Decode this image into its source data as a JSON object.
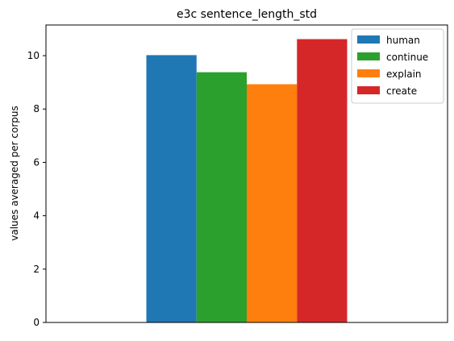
{
  "chart_data": {
    "type": "bar",
    "title": "e3c sentence_length_std",
    "xlabel": "",
    "ylabel": "values averaged per corpus",
    "categories": [
      ""
    ],
    "ylim": [
      0,
      11.15
    ],
    "yticks": [
      0,
      2,
      4,
      6,
      8,
      10
    ],
    "grid": false,
    "legend_position": "top-right",
    "series": [
      {
        "name": "human",
        "values": [
          10.02
        ],
        "color": "#1f77b4"
      },
      {
        "name": "continue",
        "values": [
          9.38
        ],
        "color": "#2ca02c"
      },
      {
        "name": "explain",
        "values": [
          8.93
        ],
        "color": "#ff7f0e"
      },
      {
        "name": "create",
        "values": [
          10.62
        ],
        "color": "#d62728"
      }
    ]
  }
}
